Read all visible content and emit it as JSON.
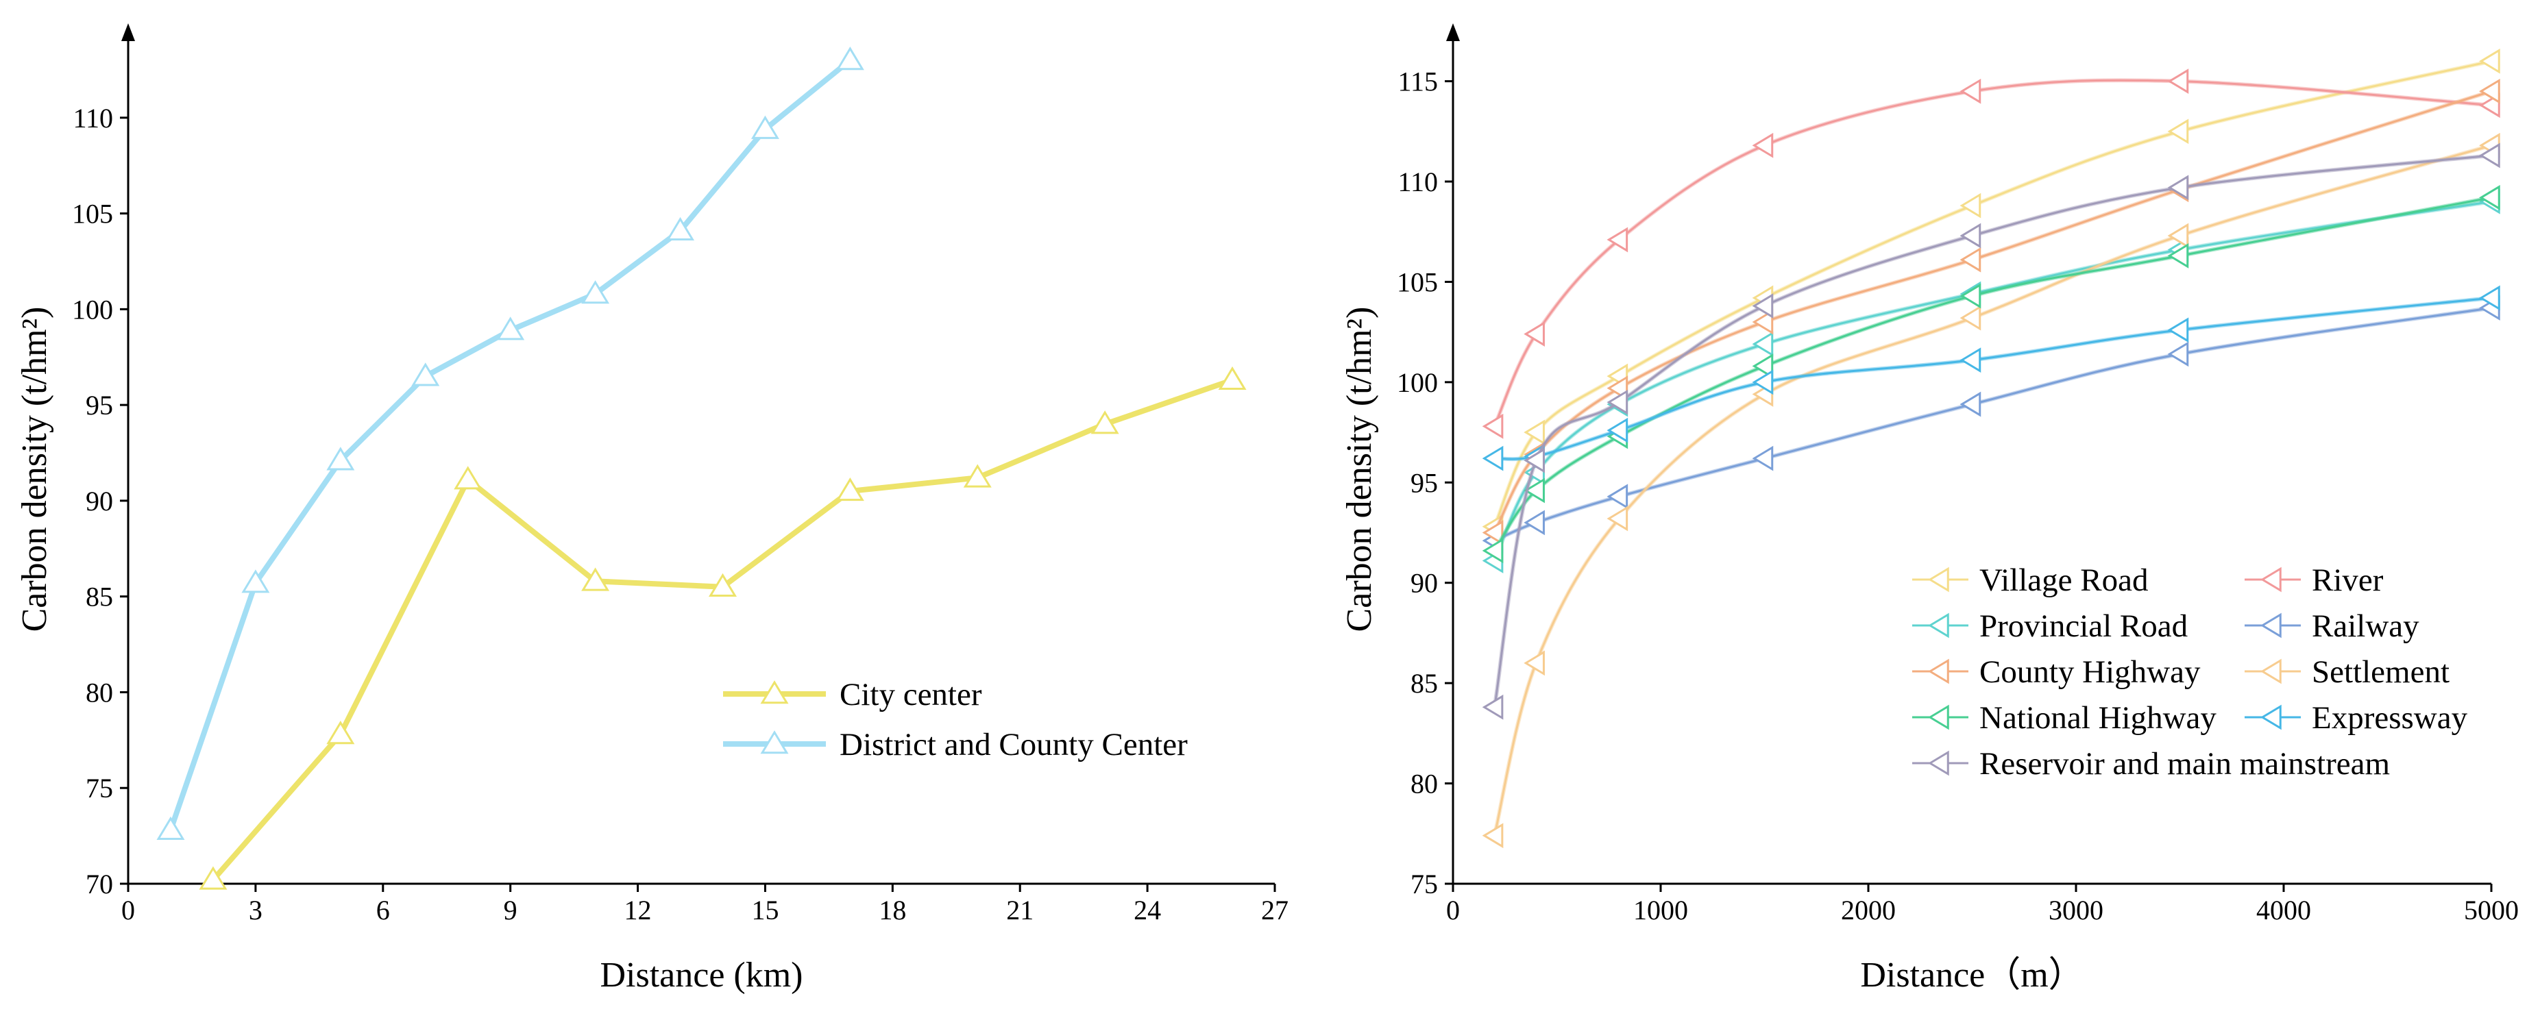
{
  "chart_data": [
    {
      "type": "line",
      "xlabel": "Distance (km)",
      "ylabel": "Carbon density (t/hm²)",
      "xlim": [
        0,
        27
      ],
      "ylim": [
        70,
        114
      ],
      "xticks": [
        0,
        3,
        6,
        9,
        12,
        15,
        18,
        21,
        24,
        27
      ],
      "yticks": [
        70,
        75,
        80,
        85,
        90,
        95,
        100,
        105,
        110
      ],
      "legend_position": "lower-right",
      "series": [
        {
          "name": "City center",
          "color": "#ede36a",
          "x": [
            2,
            5,
            8,
            11,
            14,
            17,
            20,
            23,
            26
          ],
          "y": [
            70.2,
            77.8,
            91.1,
            85.8,
            85.5,
            90.5,
            91.2,
            94.0,
            96.3
          ]
        },
        {
          "name": "District and County Center",
          "color": "#a3def4",
          "x": [
            1,
            3,
            5,
            7,
            9,
            11,
            13,
            15,
            17
          ],
          "y": [
            72.8,
            85.7,
            92.1,
            96.5,
            98.9,
            100.8,
            104.1,
            109.4,
            113.0
          ]
        }
      ]
    },
    {
      "type": "line",
      "xlabel": "Distance（m）",
      "ylabel": "Carbon density (t/hm²)",
      "xlim": [
        0,
        5000
      ],
      "ylim": [
        75,
        117
      ],
      "xticks": [
        0,
        1000,
        2000,
        3000,
        4000,
        5000
      ],
      "yticks": [
        75,
        80,
        85,
        90,
        95,
        100,
        105,
        110,
        115
      ],
      "legend_position": "lower-right",
      "series": [
        {
          "name": "Village Road",
          "color": "#f5dd8a",
          "x": [
            200,
            400,
            800,
            1500,
            2500,
            3500,
            5000
          ],
          "y": [
            92.8,
            97.5,
            100.3,
            104.2,
            108.8,
            112.5,
            116.0
          ]
        },
        {
          "name": "River",
          "color": "#f2999a",
          "x": [
            200,
            400,
            800,
            1500,
            2500,
            3500,
            5000
          ],
          "y": [
            97.8,
            102.4,
            107.1,
            111.8,
            114.5,
            115.0,
            113.8
          ]
        },
        {
          "name": "Provincial Road",
          "color": "#5ed3cf",
          "x": [
            200,
            400,
            800,
            1500,
            2500,
            3500,
            5000
          ],
          "y": [
            91.1,
            95.5,
            98.9,
            101.9,
            104.4,
            106.6,
            109.0
          ]
        },
        {
          "name": "Railway",
          "color": "#7a9fd8",
          "x": [
            200,
            400,
            800,
            1500,
            2500,
            3500,
            5000
          ],
          "y": [
            92.1,
            93.0,
            94.3,
            96.2,
            98.9,
            101.4,
            103.7
          ]
        },
        {
          "name": "County Highway",
          "color": "#f3ad7f",
          "x": [
            200,
            400,
            800,
            1500,
            2500,
            3500,
            5000
          ],
          "y": [
            92.5,
            96.4,
            99.7,
            103.0,
            106.1,
            109.6,
            114.5
          ]
        },
        {
          "name": "Settlement",
          "color": "#f7cc8f",
          "x": [
            200,
            400,
            800,
            1500,
            2500,
            3500,
            5000
          ],
          "y": [
            77.4,
            86.0,
            93.2,
            99.4,
            103.2,
            107.3,
            111.8
          ]
        },
        {
          "name": "National Highway",
          "color": "#47cf92",
          "x": [
            200,
            400,
            800,
            1500,
            2500,
            3500,
            5000
          ],
          "y": [
            91.6,
            94.6,
            97.3,
            100.8,
            104.3,
            106.3,
            109.2
          ]
        },
        {
          "name": "Expressway",
          "color": "#45b7e6",
          "x": [
            200,
            400,
            800,
            1500,
            2500,
            3500,
            5000
          ],
          "y": [
            96.2,
            96.3,
            97.6,
            100.0,
            101.1,
            102.6,
            104.2
          ]
        },
        {
          "name": "Reservoir and main mainstream",
          "color": "#a09ab9",
          "x": [
            200,
            400,
            800,
            1500,
            2500,
            3500,
            5000
          ],
          "y": [
            83.8,
            96.1,
            99.0,
            103.8,
            107.3,
            109.7,
            111.3
          ]
        }
      ]
    }
  ]
}
